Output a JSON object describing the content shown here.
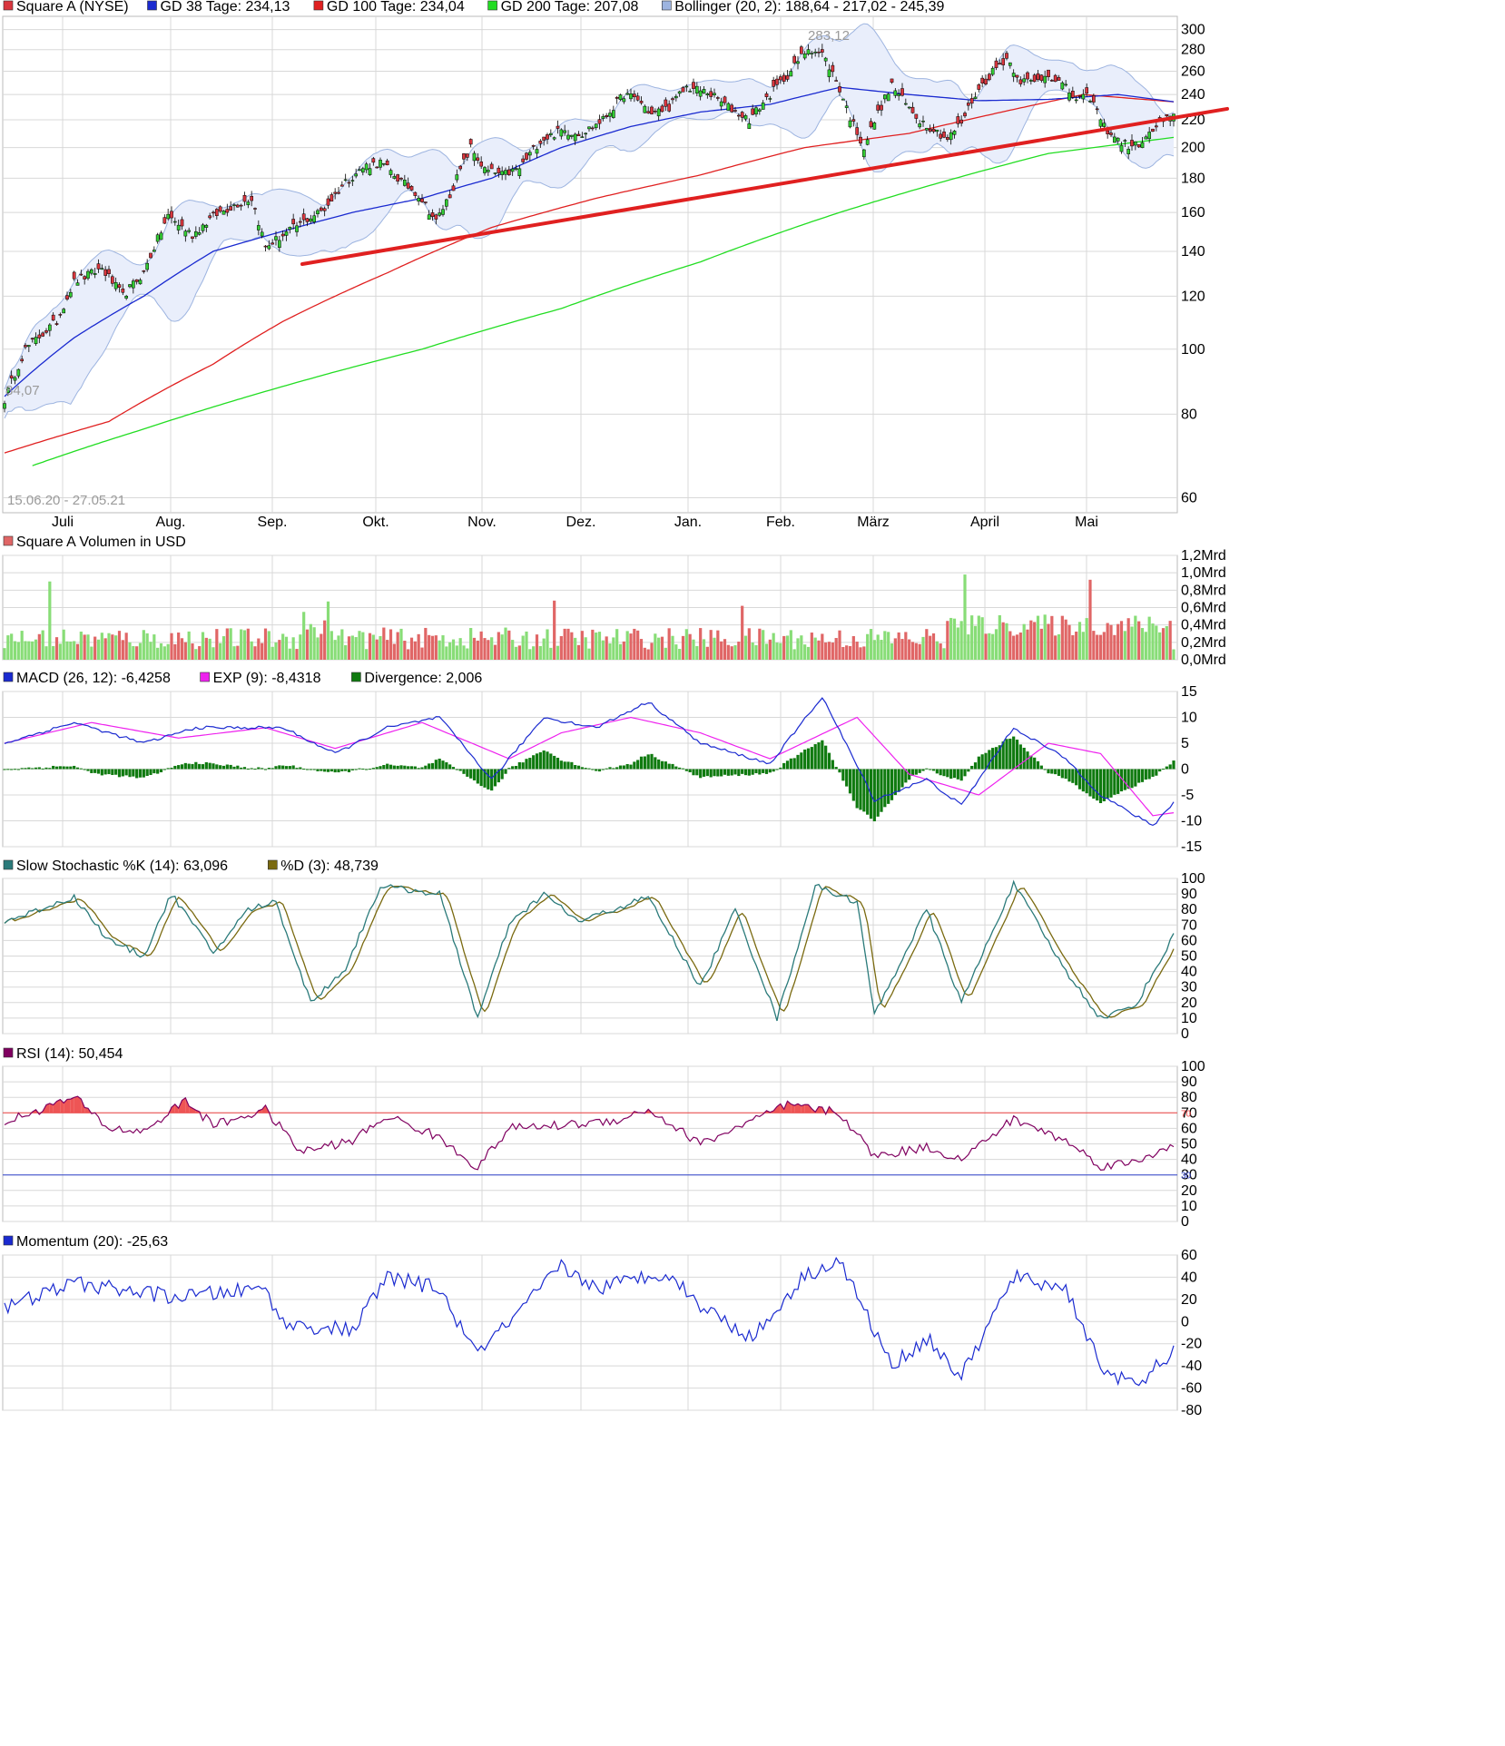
{
  "colors": {
    "up": "#33cc33",
    "down": "#d9363e",
    "gd38": "#1a2ad0",
    "gd100": "#e02020",
    "gd200": "#22dd22",
    "bollinger": "#9db4e0",
    "bollinger_fill": "#e9eefb",
    "trendline": "#e02020",
    "vol_up": "#88dd77",
    "vol_down": "#e06666",
    "macd": "#1a2ad0",
    "exp": "#ee22ee",
    "divergence": "#0f7a0f",
    "stoch_k": "#2a7a7a",
    "stoch_d": "#7a6a10",
    "rsi": "#800060",
    "rsi_fill": "#ee5555",
    "momentum": "#1a2ad0",
    "grid": "#d8d8d8"
  },
  "x_months": [
    "Juli",
    "Aug.",
    "Sep.",
    "Okt.",
    "Nov.",
    "Dez.",
    "Jan.",
    "Feb.",
    "März",
    "April",
    "Mai"
  ],
  "panels": {
    "price": {
      "legend": [
        {
          "color": "#d9363e",
          "text": "Square A (NYSE)"
        },
        {
          "color": "#1a2ad0",
          "text": "GD 38 Tage: 234,13"
        },
        {
          "color": "#e02020",
          "text": "GD 100 Tage: 234,04"
        },
        {
          "color": "#22dd22",
          "text": "GD 200 Tage: 207,08"
        },
        {
          "color": "#9db4e0",
          "text": "Bollinger (20, 2): 188,64 - 217,02 - 245,39"
        }
      ],
      "ticks": [
        "300",
        "280",
        "260",
        "240",
        "220",
        "200",
        "180",
        "160",
        "140",
        "120",
        "100",
        "80",
        "60"
      ],
      "date_range": "15.06.20 - 27.05.21",
      "max_label": "283,12",
      "min_label": "84,07"
    },
    "volume": {
      "legend": [
        {
          "color": "#e06666",
          "text": "Square A Volumen in USD"
        }
      ],
      "ticks": [
        "1,2Mrd",
        "1,0Mrd",
        "0,8Mrd",
        "0,6Mrd",
        "0,4Mrd",
        "0,2Mrd",
        "0,0Mrd"
      ]
    },
    "macd": {
      "legend": [
        {
          "color": "#1a2ad0",
          "text": "MACD (26, 12): -6,4258"
        },
        {
          "color": "#ee22ee",
          "text": "EXP (9): -8,4318"
        },
        {
          "color": "#0f7a0f",
          "text": "Divergence: 2,006"
        }
      ],
      "ticks": [
        "15",
        "10",
        "5",
        "0",
        "-5",
        "-10",
        "-15"
      ]
    },
    "stoch": {
      "legend": [
        {
          "color": "#2a7a7a",
          "text": "Slow Stochastic %K (14): 63,096"
        },
        {
          "color": "#7a6a10",
          "text": "%D (3): 48,739"
        }
      ],
      "ticks": [
        "100",
        "90",
        "80",
        "70",
        "60",
        "50",
        "40",
        "30",
        "20",
        "10",
        "0"
      ]
    },
    "rsi": {
      "legend": [
        {
          "color": "#800060",
          "text": "RSI (14): 50,454"
        }
      ],
      "ticks": [
        "100",
        "90",
        "80",
        "70",
        "60",
        "50",
        "40",
        "30",
        "20",
        "10",
        "0"
      ],
      "level_high": "70",
      "level_low": "30"
    },
    "momentum": {
      "legend": [
        {
          "color": "#1a2ad0",
          "text": "Momentum (20): -25,63"
        }
      ],
      "ticks": [
        "60",
        "40",
        "20",
        "0",
        "-20",
        "-40",
        "-60",
        "-80"
      ]
    }
  },
  "chart_data": [
    {
      "type": "candlestick",
      "title": "Square A (NYSE)",
      "x_range": [
        "15.06.20",
        "27.05.21"
      ],
      "y_scale": "log",
      "ylim": [
        50,
        310
      ],
      "price_anchors": [
        [
          0,
          84
        ],
        [
          6,
          100
        ],
        [
          15,
          110
        ],
        [
          20,
          126
        ],
        [
          28,
          132
        ],
        [
          34,
          120
        ],
        [
          40,
          130
        ],
        [
          47,
          158
        ],
        [
          54,
          148
        ],
        [
          60,
          158
        ],
        [
          67,
          165
        ],
        [
          71,
          168
        ],
        [
          75,
          142
        ],
        [
          80,
          148
        ],
        [
          85,
          154
        ],
        [
          92,
          162
        ],
        [
          98,
          178
        ],
        [
          104,
          188
        ],
        [
          108,
          190
        ],
        [
          114,
          178
        ],
        [
          119,
          170
        ],
        [
          124,
          155
        ],
        [
          128,
          170
        ],
        [
          134,
          200
        ],
        [
          138,
          185
        ],
        [
          143,
          182
        ],
        [
          148,
          186
        ],
        [
          154,
          205
        ],
        [
          160,
          212
        ],
        [
          166,
          210
        ],
        [
          172,
          220
        ],
        [
          178,
          240
        ],
        [
          182,
          236
        ],
        [
          186,
          224
        ],
        [
          191,
          230
        ],
        [
          196,
          246
        ],
        [
          202,
          242
        ],
        [
          208,
          230
        ],
        [
          214,
          220
        ],
        [
          220,
          240
        ],
        [
          226,
          260
        ],
        [
          231,
          282
        ],
        [
          235,
          276
        ],
        [
          239,
          252
        ],
        [
          243,
          222
        ],
        [
          247,
          200
        ],
        [
          251,
          225
        ],
        [
          255,
          248
        ],
        [
          259,
          232
        ],
        [
          263,
          220
        ],
        [
          267,
          213
        ],
        [
          271,
          206
        ],
        [
          275,
          218
        ],
        [
          279,
          240
        ],
        [
          284,
          260
        ],
        [
          288,
          272
        ],
        [
          292,
          252
        ],
        [
          296,
          250
        ],
        [
          300,
          258
        ],
        [
          304,
          248
        ],
        [
          308,
          236
        ],
        [
          312,
          238
        ],
        [
          316,
          215
        ],
        [
          320,
          205
        ],
        [
          324,
          200
        ],
        [
          328,
          206
        ],
        [
          332,
          218
        ],
        [
          336,
          222
        ]
      ],
      "gd38_anchors": [
        [
          0,
          85
        ],
        [
          20,
          104
        ],
        [
          40,
          120
        ],
        [
          60,
          140
        ],
        [
          80,
          150
        ],
        [
          100,
          160
        ],
        [
          120,
          168
        ],
        [
          140,
          180
        ],
        [
          160,
          200
        ],
        [
          180,
          215
        ],
        [
          200,
          226
        ],
        [
          220,
          232
        ],
        [
          240,
          246
        ],
        [
          260,
          240
        ],
        [
          280,
          235
        ],
        [
          300,
          236
        ],
        [
          320,
          240
        ],
        [
          336,
          234.13
        ]
      ],
      "gd100_anchors": [
        [
          0,
          70
        ],
        [
          30,
          78
        ],
        [
          60,
          95
        ],
        [
          80,
          110
        ],
        [
          110,
          130
        ],
        [
          140,
          152
        ],
        [
          170,
          168
        ],
        [
          200,
          182
        ],
        [
          230,
          200
        ],
        [
          260,
          210
        ],
        [
          290,
          228
        ],
        [
          310,
          240
        ],
        [
          336,
          234.04
        ]
      ],
      "gd200_anchors": [
        [
          8,
          67
        ],
        [
          40,
          76
        ],
        [
          80,
          88
        ],
        [
          120,
          100
        ],
        [
          160,
          115
        ],
        [
          200,
          135
        ],
        [
          240,
          160
        ],
        [
          270,
          178
        ],
        [
          300,
          196
        ],
        [
          336,
          207.08
        ]
      ],
      "bollinger_last": {
        "lower": 188.64,
        "mid": 217.02,
        "upper": 245.39
      },
      "trendline": [
        [
          "Sep.",
          134
        ],
        [
          "27.05.21",
          224
        ]
      ]
    },
    {
      "type": "bar",
      "title": "Square A Volumen in USD",
      "unit": "Mrd USD",
      "ylim": [
        0,
        1.2
      ],
      "spikes": [
        [
          13,
          0.9
        ],
        [
          86,
          0.55
        ],
        [
          93,
          0.67
        ],
        [
          158,
          0.68
        ],
        [
          212,
          0.62
        ],
        [
          276,
          0.98
        ],
        [
          312,
          0.92
        ],
        [
          336,
          0.12
        ]
      ]
    },
    {
      "type": "line",
      "title": "MACD (26, 12)",
      "ylim": [
        -15,
        15
      ],
      "macd_anchors": [
        [
          0,
          5
        ],
        [
          20,
          9
        ],
        [
          40,
          5
        ],
        [
          55,
          8
        ],
        [
          70,
          8
        ],
        [
          80,
          8
        ],
        [
          95,
          3
        ],
        [
          110,
          8
        ],
        [
          125,
          10
        ],
        [
          140,
          -2
        ],
        [
          155,
          10
        ],
        [
          170,
          8
        ],
        [
          185,
          13
        ],
        [
          200,
          5
        ],
        [
          220,
          1
        ],
        [
          235,
          14
        ],
        [
          250,
          -6
        ],
        [
          265,
          -2
        ],
        [
          275,
          -7
        ],
        [
          290,
          8
        ],
        [
          305,
          2
        ],
        [
          315,
          -5
        ],
        [
          330,
          -11
        ],
        [
          336,
          -6.4258
        ]
      ],
      "exp_anchors": [
        [
          0,
          5
        ],
        [
          25,
          9
        ],
        [
          50,
          6
        ],
        [
          75,
          8
        ],
        [
          95,
          4
        ],
        [
          120,
          9
        ],
        [
          145,
          2
        ],
        [
          160,
          7
        ],
        [
          180,
          10
        ],
        [
          200,
          7
        ],
        [
          220,
          2
        ],
        [
          245,
          10
        ],
        [
          260,
          -1
        ],
        [
          280,
          -5
        ],
        [
          300,
          5
        ],
        [
          315,
          3
        ],
        [
          330,
          -9
        ],
        [
          336,
          -8.4318
        ]
      ],
      "last_divergence": 2.006
    },
    {
      "type": "line",
      "title": "Slow Stochastic %K (14)",
      "ylim": [
        0,
        100
      ],
      "k_anchors": [
        [
          0,
          72
        ],
        [
          20,
          88
        ],
        [
          30,
          60
        ],
        [
          40,
          50
        ],
        [
          48,
          90
        ],
        [
          60,
          52
        ],
        [
          70,
          80
        ],
        [
          78,
          85
        ],
        [
          88,
          20
        ],
        [
          98,
          42
        ],
        [
          108,
          95
        ],
        [
          125,
          90
        ],
        [
          136,
          10
        ],
        [
          145,
          70
        ],
        [
          155,
          90
        ],
        [
          165,
          72
        ],
        [
          185,
          88
        ],
        [
          200,
          30
        ],
        [
          210,
          80
        ],
        [
          222,
          10
        ],
        [
          233,
          95
        ],
        [
          245,
          85
        ],
        [
          250,
          12
        ],
        [
          265,
          80
        ],
        [
          275,
          20
        ],
        [
          290,
          97
        ],
        [
          305,
          40
        ],
        [
          315,
          10
        ],
        [
          325,
          18
        ],
        [
          336,
          63.096
        ]
      ],
      "last_d": 48.739
    },
    {
      "type": "line",
      "title": "RSI (14)",
      "ylim": [
        0,
        100
      ],
      "levels": [
        70,
        30
      ],
      "rsi_anchors": [
        [
          0,
          64
        ],
        [
          10,
          72
        ],
        [
          20,
          80
        ],
        [
          30,
          60
        ],
        [
          40,
          58
        ],
        [
          52,
          78
        ],
        [
          60,
          62
        ],
        [
          75,
          72
        ],
        [
          85,
          45
        ],
        [
          100,
          52
        ],
        [
          110,
          68
        ],
        [
          124,
          55
        ],
        [
          136,
          35
        ],
        [
          145,
          60
        ],
        [
          160,
          62
        ],
        [
          175,
          65
        ],
        [
          185,
          72
        ],
        [
          200,
          50
        ],
        [
          225,
          75
        ],
        [
          240,
          70
        ],
        [
          250,
          42
        ],
        [
          265,
          48
        ],
        [
          275,
          40
        ],
        [
          290,
          66
        ],
        [
          305,
          52
        ],
        [
          315,
          36
        ],
        [
          325,
          38
        ],
        [
          336,
          50.454
        ]
      ]
    },
    {
      "type": "line",
      "title": "Momentum (20)",
      "ylim": [
        -80,
        60
      ],
      "mom_anchors": [
        [
          0,
          12
        ],
        [
          20,
          35
        ],
        [
          35,
          28
        ],
        [
          50,
          22
        ],
        [
          75,
          30
        ],
        [
          80,
          -2
        ],
        [
          100,
          -8
        ],
        [
          110,
          40
        ],
        [
          125,
          30
        ],
        [
          135,
          -28
        ],
        [
          145,
          -2
        ],
        [
          160,
          50
        ],
        [
          170,
          30
        ],
        [
          190,
          45
        ],
        [
          200,
          15
        ],
        [
          215,
          -15
        ],
        [
          230,
          42
        ],
        [
          240,
          55
        ],
        [
          255,
          -40
        ],
        [
          265,
          -15
        ],
        [
          275,
          -50
        ],
        [
          290,
          40
        ],
        [
          305,
          30
        ],
        [
          315,
          -40
        ],
        [
          325,
          -60
        ],
        [
          336,
          -25.63
        ]
      ]
    }
  ]
}
